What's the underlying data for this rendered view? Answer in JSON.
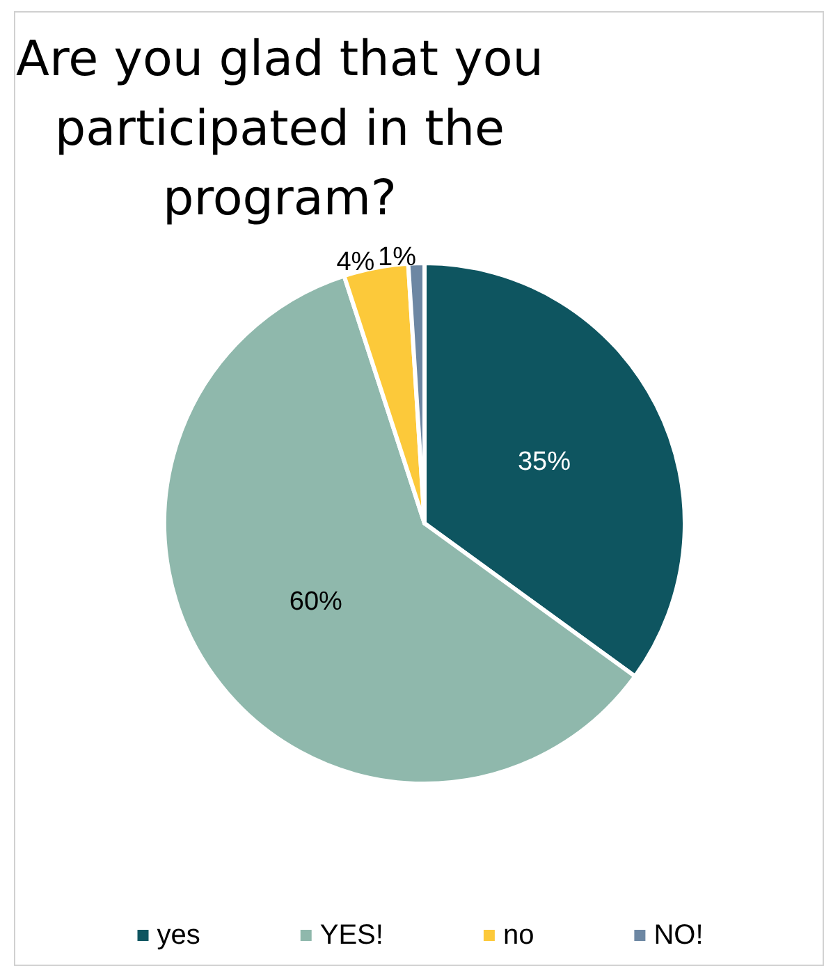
{
  "chart_data": {
    "type": "pie",
    "title": "Are you glad that you participated in the program?",
    "categories": [
      "yes",
      "YES!",
      "no",
      "NO!"
    ],
    "values": [
      35,
      60,
      4,
      1
    ],
    "colors": [
      "#0e5560",
      "#8fb8ac",
      "#fcc93a",
      "#6d87a3"
    ],
    "value_labels": [
      "35%",
      "60%",
      "4%",
      "1%"
    ],
    "legend": "bottom"
  }
}
